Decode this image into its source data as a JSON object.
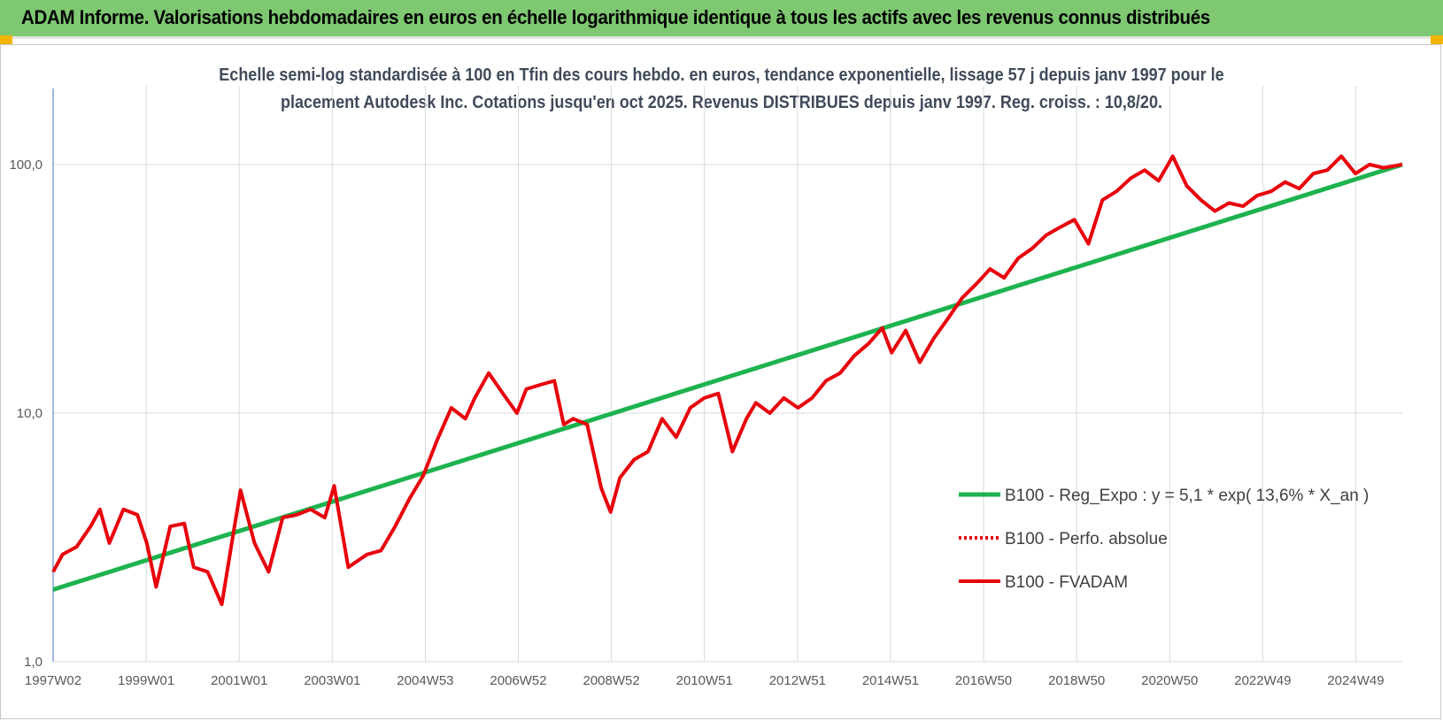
{
  "header": {
    "title": "ADAM Informe. Valorisations hebdomadaires en euros en échelle logarithmique identique à tous les actifs avec les revenus connus distribués"
  },
  "colors": {
    "banner": "#7dc870",
    "trend": "#1db34f",
    "fvadam": "#e8000b",
    "perfo": "#e8000b",
    "grid": "#d9d9d9"
  },
  "chart_data": {
    "type": "line",
    "title_lines": [
      "Echelle semi-log standardisée à 100 en Tfin des cours hebdo. en euros, tendance exponentielle, lissage 57 j depuis janv 1997 pour le",
      "placement Autodesk Inc. Cotations jusqu'en oct 2025. Revenus DISTRIBUES depuis janv 1997. Reg. croiss. : 10,8/20."
    ],
    "y_scale": "log",
    "ylim": [
      1,
      200
    ],
    "y_ticks": [
      "1,0",
      "10,0",
      "100,0"
    ],
    "x_tick_labels": [
      "1997W02",
      "1999W01",
      "2001W01",
      "2003W01",
      "2004W53",
      "2006W52",
      "2008W52",
      "2010W51",
      "2012W51",
      "2014W51",
      "2016W50",
      "2018W50",
      "2020W50",
      "2022W49",
      "2024W49"
    ],
    "x_range_years": [
      1997.0,
      2025.8
    ],
    "grid": "vertical and horizontal",
    "legend_position": "lower-right",
    "series": [
      {
        "name": "B100 - Reg_Expo : y = 5,1 * exp( 13,6% *  X_an )",
        "style": "solid-green",
        "x": [
          1997.0,
          2025.8
        ],
        "values": [
          1.95,
          100
        ]
      },
      {
        "name": "B100 - Perfo. absolue",
        "style": "dotted-red",
        "x": [],
        "values": []
      },
      {
        "name": "B100 - FVADAM",
        "style": "solid-red",
        "x": [
          1997.0,
          1997.2,
          1997.5,
          1997.8,
          1998.0,
          1998.2,
          1998.5,
          1998.8,
          1999.0,
          1999.2,
          1999.5,
          1999.8,
          2000.0,
          2000.3,
          2000.6,
          2000.8,
          2001.0,
          2001.3,
          2001.6,
          2001.9,
          2002.2,
          2002.5,
          2002.8,
          2003.0,
          2003.3,
          2003.7,
          2004.0,
          2004.3,
          2004.6,
          2004.9,
          2005.2,
          2005.5,
          2005.8,
          2006.0,
          2006.3,
          2006.6,
          2006.9,
          2007.1,
          2007.4,
          2007.7,
          2007.9,
          2008.1,
          2008.4,
          2008.7,
          2008.9,
          2009.1,
          2009.4,
          2009.7,
          2010.0,
          2010.3,
          2010.6,
          2010.9,
          2011.2,
          2011.5,
          2011.8,
          2012.0,
          2012.3,
          2012.6,
          2012.9,
          2013.2,
          2013.5,
          2013.8,
          2014.1,
          2014.4,
          2014.7,
          2014.9,
          2015.2,
          2015.5,
          2015.8,
          2016.1,
          2016.4,
          2016.7,
          2017.0,
          2017.3,
          2017.6,
          2017.9,
          2018.2,
          2018.5,
          2018.8,
          2019.1,
          2019.4,
          2019.7,
          2020.0,
          2020.3,
          2020.6,
          2020.9,
          2021.2,
          2021.5,
          2021.8,
          2022.1,
          2022.4,
          2022.7,
          2023.0,
          2023.3,
          2023.6,
          2023.9,
          2024.2,
          2024.5,
          2024.8,
          2025.1,
          2025.4,
          2025.8
        ],
        "values": [
          2.3,
          2.7,
          2.9,
          3.5,
          4.1,
          3.0,
          4.1,
          3.9,
          3.0,
          2.0,
          3.5,
          3.6,
          2.4,
          2.3,
          1.7,
          2.9,
          4.9,
          3.0,
          2.3,
          3.8,
          3.9,
          4.1,
          3.8,
          5.1,
          2.4,
          2.7,
          2.8,
          3.5,
          4.5,
          5.6,
          7.8,
          10.5,
          9.5,
          11.5,
          14.5,
          12.0,
          10.0,
          12.5,
          13.0,
          13.5,
          9.0,
          9.5,
          9.0,
          5.0,
          4.0,
          5.5,
          6.5,
          7.0,
          9.5,
          8.0,
          10.5,
          11.5,
          12.0,
          7.0,
          9.5,
          11.0,
          10.0,
          11.5,
          10.5,
          11.5,
          13.5,
          14.5,
          17.0,
          19.0,
          22.0,
          17.5,
          21.5,
          16.0,
          20.0,
          24.0,
          29.0,
          33.0,
          38.0,
          35.0,
          42.0,
          46.0,
          52.0,
          56.0,
          60.0,
          48.0,
          72.0,
          78.0,
          88.0,
          95.0,
          86.0,
          108.0,
          82.0,
          72.0,
          65.0,
          70.0,
          68.0,
          75.0,
          78.0,
          85.0,
          80.0,
          92.0,
          95.0,
          108.0,
          92.0,
          100.0,
          97.0,
          100.0
        ]
      }
    ]
  }
}
